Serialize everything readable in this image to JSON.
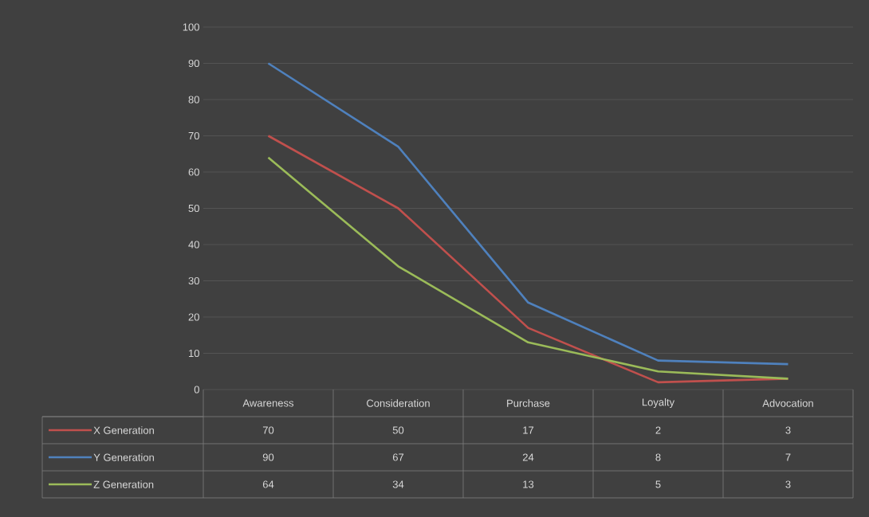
{
  "chart_data": {
    "type": "line",
    "categories": [
      "Awareness",
      "Consideration",
      "Purchase",
      "Loyalty",
      "Advocation"
    ],
    "series": [
      {
        "name": "X Generation",
        "color": "#c0504d",
        "values": [
          70,
          50,
          17,
          2,
          3
        ]
      },
      {
        "name": "Y Generation",
        "color": "#4f81bd",
        "values": [
          90,
          67,
          24,
          8,
          7
        ]
      },
      {
        "name": "Z Generation",
        "color": "#9bbb59",
        "values": [
          64,
          34,
          13,
          5,
          3
        ]
      }
    ],
    "ylim": [
      0,
      100
    ],
    "yticks": [
      0,
      10,
      20,
      30,
      40,
      50,
      60,
      70,
      80,
      90,
      100
    ],
    "grid": "y",
    "legend": "bottom",
    "marker": "none",
    "line_style": "solid",
    "data_labels": true
  }
}
